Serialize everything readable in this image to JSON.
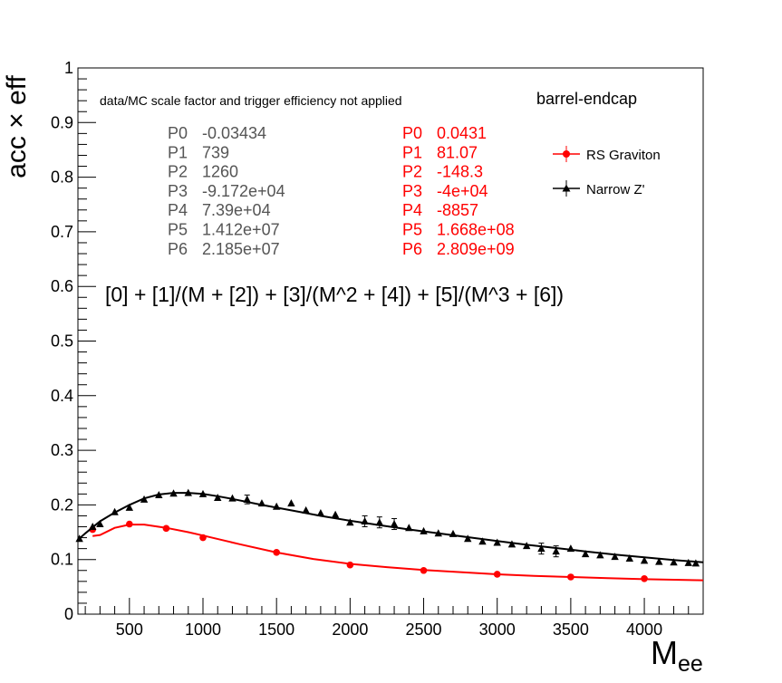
{
  "chart_data": {
    "type": "scatter",
    "title": "",
    "xlabel": "M",
    "xlabel_sub": "ee",
    "ylabel": "acc × eff",
    "xlim": [
      150,
      4400
    ],
    "ylim": [
      0,
      1
    ],
    "xticks": [
      500,
      1000,
      1500,
      2000,
      2500,
      3000,
      3500,
      4000
    ],
    "xtick_labels": [
      "500",
      "1000",
      "1500",
      "2000",
      "2500",
      "3000",
      "3500",
      "4000"
    ],
    "yticks": [
      0,
      0.1,
      0.2,
      0.3,
      0.4,
      0.5,
      0.6,
      0.7,
      0.8,
      0.9,
      1
    ],
    "ytick_labels": [
      "0",
      "0.1",
      "0.2",
      "0.3",
      "0.4",
      "0.5",
      "0.6",
      "0.7",
      "0.8",
      "0.9",
      "1"
    ],
    "grid": false,
    "legend_position": "top-right",
    "annotations": {
      "note": "data/MC scale factor and trigger efficiency not applied",
      "region": "barrel-endcap",
      "formula": "[0] + [1]/(M + [2]) + [3]/(M^2 + [4]) + [5]/(M^3 + [6])"
    },
    "fit_params": {
      "zprime": [
        {
          "name": "P0",
          "value": "-0.03434"
        },
        {
          "name": "P1",
          "value": "739"
        },
        {
          "name": "P2",
          "value": "1260"
        },
        {
          "name": "P3",
          "value": "-9.172e+04"
        },
        {
          "name": "P4",
          "value": "7.39e+04"
        },
        {
          "name": "P5",
          "value": "1.412e+07"
        },
        {
          "name": "P6",
          "value": "2.185e+07"
        }
      ],
      "graviton": [
        {
          "name": "P0",
          "value": "0.0431"
        },
        {
          "name": "P1",
          "value": "81.07"
        },
        {
          "name": "P2",
          "value": "-148.3"
        },
        {
          "name": "P3",
          "value": "-4e+04"
        },
        {
          "name": "P4",
          "value": "-8857"
        },
        {
          "name": "P5",
          "value": "1.668e+08"
        },
        {
          "name": "P6",
          "value": "2.809e+09"
        }
      ]
    },
    "series": [
      {
        "name": "RS Graviton",
        "color": "#ff0000",
        "marker": "circle",
        "x": [
          250,
          500,
          750,
          1000,
          1500,
          2000,
          2500,
          3000,
          3500,
          4000
        ],
        "y": [
          0.155,
          0.165,
          0.157,
          0.14,
          0.113,
          0.09,
          0.08,
          0.073,
          0.068,
          0.065
        ],
        "yerr": [
          0.004,
          0.003,
          0.003,
          0.003,
          0.003,
          0.002,
          0.002,
          0.002,
          0.002,
          0.002
        ],
        "fit_x": [
          250,
          300,
          400,
          500,
          600,
          750,
          900,
          1000,
          1250,
          1500,
          1750,
          2000,
          2250,
          2500,
          2750,
          3000,
          3250,
          3500,
          3750,
          4000,
          4200,
          4400
        ],
        "fit_y": [
          0.143,
          0.145,
          0.158,
          0.164,
          0.164,
          0.158,
          0.15,
          0.144,
          0.128,
          0.113,
          0.101,
          0.092,
          0.086,
          0.081,
          0.077,
          0.073,
          0.07,
          0.068,
          0.066,
          0.064,
          0.063,
          0.062
        ]
      },
      {
        "name": "Narrow Z'",
        "color": "#000000",
        "marker": "triangle",
        "x": [
          160,
          250,
          300,
          400,
          500,
          600,
          700,
          800,
          900,
          1000,
          1100,
          1200,
          1300,
          1400,
          1500,
          1600,
          1700,
          1800,
          1900,
          2000,
          2100,
          2200,
          2300,
          2400,
          2500,
          2600,
          2700,
          2800,
          2900,
          3000,
          3100,
          3200,
          3300,
          3400,
          3500,
          3600,
          3700,
          3800,
          3900,
          4000,
          4100,
          4200,
          4300,
          4350
        ],
        "y": [
          0.138,
          0.16,
          0.165,
          0.187,
          0.195,
          0.21,
          0.218,
          0.221,
          0.222,
          0.22,
          0.213,
          0.212,
          0.21,
          0.203,
          0.197,
          0.203,
          0.19,
          0.185,
          0.182,
          0.168,
          0.17,
          0.168,
          0.165,
          0.158,
          0.152,
          0.148,
          0.147,
          0.138,
          0.133,
          0.131,
          0.128,
          0.125,
          0.12,
          0.115,
          0.12,
          0.11,
          0.108,
          0.105,
          0.102,
          0.098,
          0.096,
          0.095,
          0.094,
          0.093
        ],
        "yerr": [
          0.004,
          0.004,
          0.004,
          0.004,
          0.004,
          0.004,
          0.004,
          0.004,
          0.004,
          0.004,
          0.004,
          0.004,
          0.008,
          0.004,
          0.004,
          0.004,
          0.004,
          0.004,
          0.004,
          0.004,
          0.01,
          0.01,
          0.01,
          0.004,
          0.004,
          0.004,
          0.004,
          0.004,
          0.004,
          0.004,
          0.004,
          0.004,
          0.01,
          0.01,
          0.004,
          0.004,
          0.004,
          0.004,
          0.004,
          0.004,
          0.004,
          0.004,
          0.004,
          0.004
        ],
        "fit_x": [
          150,
          200,
          300,
          400,
          500,
          600,
          700,
          800,
          900,
          1000,
          1100,
          1200,
          1400,
          1600,
          1800,
          2000,
          2200,
          2400,
          2600,
          2800,
          3000,
          3200,
          3400,
          3600,
          3800,
          4000,
          4200,
          4400
        ],
        "fit_y": [
          0.136,
          0.148,
          0.17,
          0.186,
          0.2,
          0.212,
          0.219,
          0.222,
          0.222,
          0.22,
          0.216,
          0.211,
          0.2,
          0.19,
          0.18,
          0.171,
          0.163,
          0.155,
          0.148,
          0.141,
          0.134,
          0.127,
          0.121,
          0.115,
          0.109,
          0.104,
          0.099,
          0.095
        ]
      }
    ]
  }
}
